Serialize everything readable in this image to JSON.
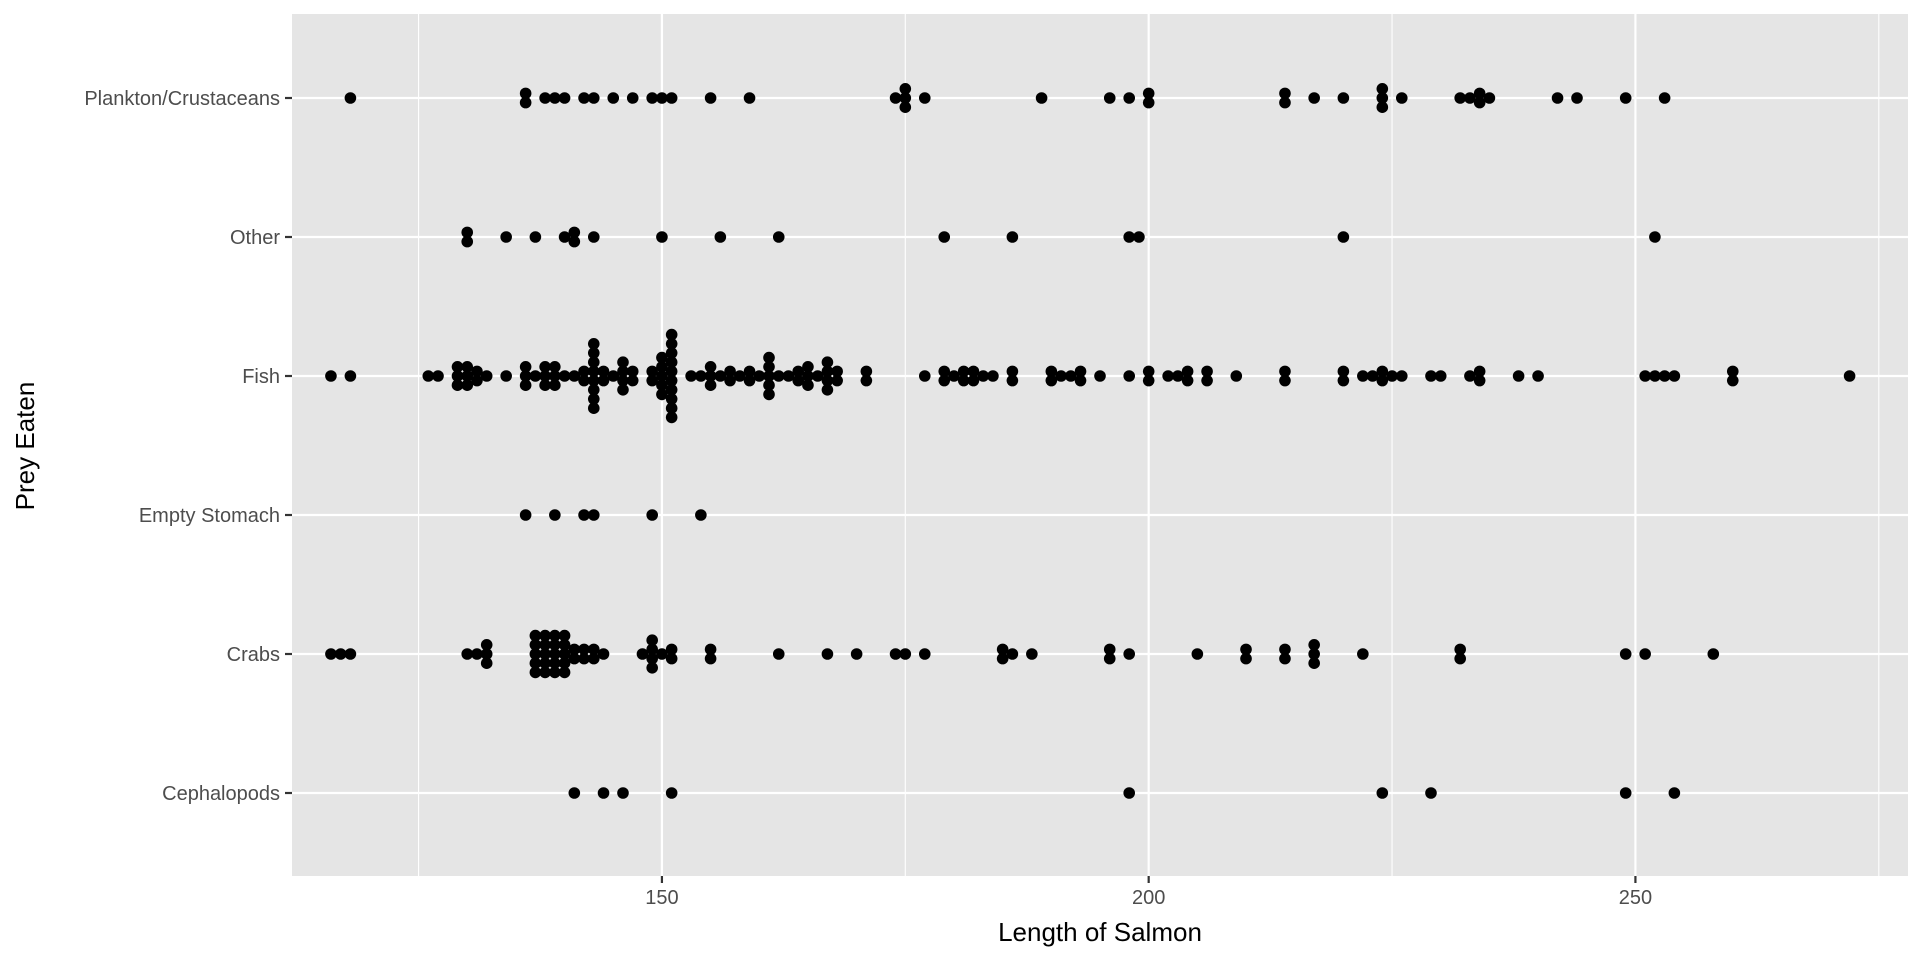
{
  "colors": {
    "panel_background": "#e5e5e5",
    "grid_major": "#ffffff",
    "point": "#000000",
    "tick_text": "#4d4d4d",
    "title_text": "#000000"
  },
  "chart_data": {
    "type": "scatter",
    "subtype": "dotplot",
    "title": "",
    "xlabel": "Length of Salmon",
    "ylabel": "Prey Eaten",
    "xlim": [
      112,
      278
    ],
    "x_ticks": [
      150,
      200,
      250
    ],
    "x_minor_ticks": [
      125,
      175,
      225,
      275
    ],
    "categories": [
      "Cephalopods",
      "Crabs",
      "Empty Stomach",
      "Fish",
      "Other",
      "Plankton/Crustaceans"
    ],
    "grid": true,
    "legend": "none",
    "series": [
      {
        "category": "Plankton/Crustaceans",
        "x": [
          118,
          136,
          136,
          138,
          139,
          140,
          142,
          143,
          145,
          147,
          149,
          150,
          151,
          155,
          159,
          174,
          175,
          175,
          175,
          177,
          189,
          196,
          198,
          200,
          200,
          214,
          214,
          217,
          220,
          224,
          224,
          224,
          226,
          232,
          233,
          234,
          234,
          235,
          242,
          244,
          249,
          253
        ]
      },
      {
        "category": "Other",
        "x": [
          130,
          130,
          134,
          137,
          140,
          141,
          141,
          143,
          150,
          156,
          162,
          179,
          186,
          198,
          199,
          220,
          252
        ]
      },
      {
        "category": "Fish",
        "x": [
          116,
          118,
          126,
          127,
          129,
          129,
          129,
          130,
          130,
          130,
          131,
          131,
          132,
          134,
          136,
          136,
          136,
          137,
          138,
          138,
          138,
          139,
          139,
          139,
          140,
          141,
          142,
          142,
          143,
          143,
          143,
          143,
          143,
          143,
          143,
          143,
          144,
          144,
          145,
          146,
          146,
          146,
          146,
          147,
          147,
          149,
          149,
          150,
          150,
          150,
          150,
          150,
          151,
          151,
          151,
          151,
          151,
          151,
          151,
          151,
          151,
          151,
          153,
          154,
          155,
          155,
          155,
          156,
          157,
          157,
          158,
          159,
          159,
          160,
          161,
          161,
          161,
          161,
          161,
          162,
          163,
          164,
          164,
          165,
          165,
          165,
          166,
          167,
          167,
          167,
          167,
          168,
          168,
          171,
          171,
          177,
          179,
          179,
          180,
          181,
          181,
          182,
          182,
          183,
          184,
          186,
          186,
          190,
          190,
          191,
          192,
          193,
          193,
          195,
          198,
          200,
          200,
          202,
          203,
          204,
          204,
          206,
          206,
          209,
          214,
          214,
          220,
          220,
          222,
          223,
          224,
          224,
          225,
          226,
          229,
          230,
          233,
          234,
          234,
          238,
          240,
          251,
          252,
          253,
          254,
          260,
          260,
          272
        ]
      },
      {
        "category": "Empty Stomach",
        "x": [
          136,
          139,
          142,
          143,
          149,
          154
        ]
      },
      {
        "category": "Crabs",
        "x": [
          116,
          117,
          118,
          130,
          131,
          132,
          132,
          132,
          137,
          137,
          137,
          137,
          137,
          138,
          138,
          138,
          138,
          138,
          139,
          139,
          139,
          139,
          139,
          140,
          140,
          140,
          140,
          140,
          141,
          141,
          142,
          142,
          143,
          143,
          144,
          148,
          149,
          149,
          149,
          149,
          150,
          151,
          151,
          155,
          155,
          162,
          167,
          170,
          174,
          175,
          177,
          185,
          185,
          186,
          188,
          196,
          196,
          198,
          205,
          210,
          210,
          214,
          214,
          217,
          217,
          217,
          222,
          232,
          232,
          249,
          251,
          258
        ]
      },
      {
        "category": "Cephalopods",
        "x": [
          141,
          144,
          146,
          151,
          198,
          224,
          229,
          249,
          254
        ]
      }
    ]
  }
}
